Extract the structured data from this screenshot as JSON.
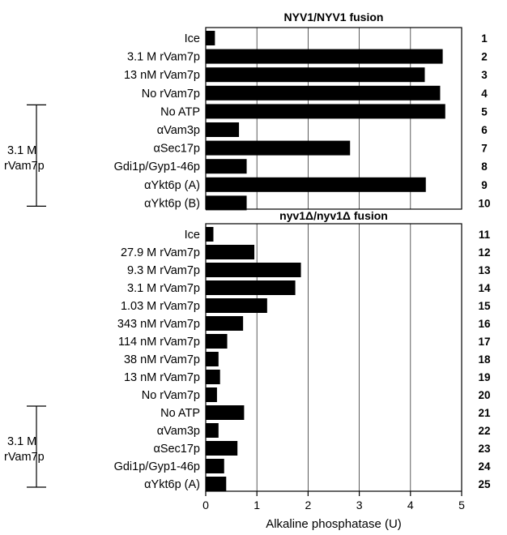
{
  "chart_data": [
    {
      "type": "bar",
      "orientation": "horizontal",
      "title": "NYV1/NYV1 fusion",
      "categories": [
        "Ice",
        "3.1   M rVam7p",
        "13 nM rVam7p",
        "No rVam7p",
        "No ATP",
        "αVam3p",
        "αSec17p",
        "Gdi1p/Gyp1-46p",
        "αYkt6p (A)",
        "αYkt6p (B)"
      ],
      "row_numbers": [
        "1",
        "2",
        "3",
        "4",
        "5",
        "6",
        "7",
        "8",
        "9",
        "10"
      ],
      "values": [
        0.18,
        4.63,
        4.28,
        4.58,
        4.68,
        0.65,
        2.82,
        0.8,
        4.3,
        0.8
      ],
      "bracket_label": [
        "3.1   M",
        "rVam7p"
      ],
      "bracket_rows": [
        5,
        10
      ],
      "xlim": [
        0,
        5
      ],
      "grid": true
    },
    {
      "type": "bar",
      "orientation": "horizontal",
      "title": "nyv1Δ/nyv1Δ fusion",
      "categories": [
        "Ice",
        "27.9   M rVam7p",
        "9.3   M rVam7p",
        "3.1   M rVam7p",
        "1.03   M rVam7p",
        "343 nM rVam7p",
        "114 nM rVam7p",
        "38 nM rVam7p",
        "13 nM rVam7p",
        "No rVam7p",
        "No ATP",
        "αVam3p",
        "αSec17p",
        "Gdi1p/Gyp1-46p",
        "αYkt6p (A)"
      ],
      "row_numbers": [
        "11",
        "12",
        "13",
        "14",
        "15",
        "16",
        "17",
        "18",
        "19",
        "20",
        "21",
        "22",
        "23",
        "24",
        "25"
      ],
      "values": [
        0.15,
        0.95,
        1.86,
        1.75,
        1.2,
        0.73,
        0.42,
        0.25,
        0.28,
        0.22,
        0.75,
        0.25,
        0.62,
        0.36,
        0.4
      ],
      "bracket_label": [
        "3.1   M",
        "rVam7p"
      ],
      "bracket_rows": [
        21,
        25
      ],
      "xlim": [
        0,
        5
      ],
      "xticks": [
        0,
        1,
        2,
        3,
        4,
        5
      ],
      "xlabel": "Alkaline phosphatase (U)",
      "grid": true
    }
  ]
}
